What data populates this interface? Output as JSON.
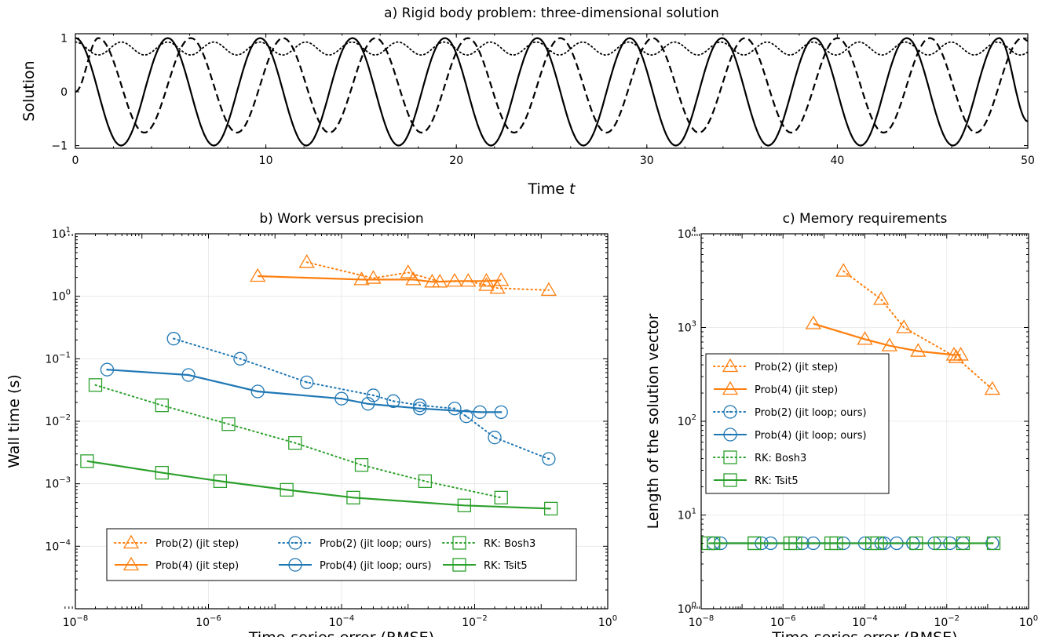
{
  "colors": {
    "orange": "#ff7f0e",
    "blue": "#1f77b4",
    "green": "#2ca02c"
  },
  "chart_data": [
    {
      "id": "a",
      "type": "line",
      "title": "a) Rigid body problem: three-dimensional solution",
      "xlabel": "Time t",
      "xlabel_main": "Time ",
      "xlabel_var": "t",
      "ylabel": "Solution",
      "xlim": [
        0,
        50
      ],
      "ylim": [
        -1.05,
        1.08
      ],
      "xticks": [
        "0",
        "10",
        "20",
        "30",
        "40",
        "50"
      ],
      "xtick_values": [
        0,
        10,
        20,
        30,
        40,
        50
      ],
      "yticks": [
        "−1",
        "0",
        "1"
      ],
      "ytick_values": [
        -1,
        0,
        1
      ],
      "grid": false,
      "series": [
        {
          "style": "solid",
          "description": "y1",
          "x": [
            0,
            2.4,
            4.85,
            7.27,
            9.7,
            12.12,
            14.55,
            16.97,
            19.4,
            21.82,
            24.25,
            26.67,
            29.1,
            31.52,
            33.95,
            36.37,
            38.8,
            41.22,
            43.65,
            46.07,
            48.5,
            50
          ],
          "y": [
            1,
            -1,
            1,
            -1,
            1,
            -1,
            1,
            -1,
            1,
            -1,
            1,
            -1,
            1,
            -1,
            1,
            -1,
            1,
            -1,
            1,
            -1,
            1,
            -0.55
          ]
        },
        {
          "style": "dashed",
          "description": "y2",
          "x": [
            0,
            1.21,
            3.62,
            6.06,
            8.48,
            10.91,
            13.33,
            15.76,
            18.18,
            20.61,
            23.03,
            25.46,
            27.88,
            30.31,
            32.73,
            35.16,
            37.58,
            40.01,
            42.43,
            44.86,
            47.28,
            49.71,
            50
          ],
          "y": [
            0,
            1,
            -0.76,
            1,
            -0.76,
            1,
            -0.76,
            1,
            -0.76,
            1,
            -0.76,
            1,
            -0.76,
            1,
            -0.76,
            1,
            -0.76,
            1,
            -0.76,
            1,
            -0.76,
            1,
            0.95
          ]
        },
        {
          "style": "dotted",
          "description": "y3",
          "x": [
            0,
            50
          ],
          "mean": 0.805,
          "amplitude": 0.12,
          "period": 2.42
        }
      ]
    },
    {
      "id": "b",
      "type": "line",
      "title": "b) Work versus precision",
      "xlabel": "Time-series error (RMSE)",
      "ylabel": "Wall time (s)",
      "xscale": "log",
      "yscale": "log",
      "xlim": [
        1e-08,
        1
      ],
      "ylim": [
        1e-05,
        10
      ],
      "xtick_exponents": [
        -8,
        -6,
        -4,
        -2,
        0
      ],
      "ytick_exponents": [
        -4,
        -3,
        -2,
        -1,
        0,
        1
      ],
      "tick_base": "10",
      "grid": true,
      "legend": "bottom",
      "series": [
        {
          "name": "Prob(2) (jit step)",
          "color": "orange",
          "line": "dotted",
          "marker": "triangle",
          "x": [
            3e-05,
            0.0003,
            0.001,
            0.003,
            0.008,
            0.015,
            0.022,
            0.13
          ],
          "y": [
            3.5,
            1.95,
            2.4,
            1.7,
            1.75,
            1.5,
            1.35,
            1.25
          ]
        },
        {
          "name": "Prob(4) (jit step)",
          "color": "orange",
          "line": "solid",
          "marker": "triangle",
          "x": [
            5.5e-06,
            0.0002,
            0.0012,
            0.0023,
            0.005,
            0.015,
            0.025
          ],
          "y": [
            2.1,
            1.85,
            1.85,
            1.7,
            1.75,
            1.75,
            1.8
          ]
        },
        {
          "name": "Prob(2) (jit loop; ours)",
          "color": "blue",
          "line": "dotted",
          "marker": "circle",
          "x": [
            3e-07,
            3e-06,
            3e-05,
            0.0003,
            0.0006,
            0.0015,
            0.005,
            0.0075,
            0.02,
            0.13
          ],
          "y": [
            0.21,
            0.1,
            0.042,
            0.026,
            0.021,
            0.018,
            0.016,
            0.012,
            0.0055,
            0.0025
          ]
        },
        {
          "name": "Prob(4) (jit loop; ours)",
          "color": "blue",
          "line": "solid",
          "marker": "circle",
          "x": [
            3e-08,
            5e-07,
            5.5e-06,
            0.0001,
            0.00025,
            0.0015,
            0.012,
            0.025
          ],
          "y": [
            0.067,
            0.055,
            0.03,
            0.023,
            0.019,
            0.016,
            0.014,
            0.014
          ]
        },
        {
          "name": "RK: Bosh3",
          "color": "green",
          "line": "dotted",
          "marker": "square",
          "x": [
            2e-08,
            2e-07,
            2e-06,
            2e-05,
            0.0002,
            0.0018,
            0.025
          ],
          "y": [
            0.038,
            0.018,
            0.009,
            0.0045,
            0.002,
            0.0011,
            0.0006
          ]
        },
        {
          "name": "RK: Tsit5",
          "color": "green",
          "line": "solid",
          "marker": "square",
          "x": [
            1.5e-08,
            2e-07,
            1.5e-06,
            1.5e-05,
            0.00015,
            0.007,
            0.14
          ],
          "y": [
            0.0023,
            0.0015,
            0.0011,
            0.0008,
            0.0006,
            0.00045,
            0.0004
          ]
        }
      ]
    },
    {
      "id": "c",
      "type": "line",
      "title": "c) Memory requirements",
      "xlabel": "Time-series error (RMSE)",
      "ylabel": "Length of the solution vector",
      "xscale": "log",
      "yscale": "log",
      "xlim": [
        1e-08,
        1
      ],
      "ylim": [
        1,
        10000
      ],
      "xtick_exponents": [
        -8,
        -6,
        -4,
        -2,
        0
      ],
      "ytick_exponents": [
        0,
        1,
        2,
        3,
        4
      ],
      "tick_base": "10",
      "grid": true,
      "legend": "center-left",
      "series": [
        {
          "name": "Prob(2) (jit step)",
          "color": "orange",
          "line": "dotted",
          "marker": "triangle",
          "x": [
            3e-05,
            0.00025,
            0.0009,
            0.017,
            0.13
          ],
          "y": [
            4000,
            2000,
            1000,
            480,
            220
          ]
        },
        {
          "name": "Prob(4) (jit step)",
          "color": "orange",
          "line": "solid",
          "marker": "triangle",
          "x": [
            5.5e-06,
            0.0001,
            0.0004,
            0.002,
            0.015,
            0.022
          ],
          "y": [
            1100,
            750,
            640,
            560,
            510,
            510
          ]
        },
        {
          "name": "Prob(2) (jit loop; ours)",
          "color": "blue",
          "line": "dotted",
          "marker": "circle",
          "x": [
            2e-08,
            3e-07,
            3e-06,
            3e-05,
            0.0003,
            0.0006,
            0.0015,
            0.005,
            0.13
          ],
          "y": [
            5,
            5,
            5,
            5,
            5,
            5,
            5,
            5,
            5
          ]
        },
        {
          "name": "Prob(4) (jit loop; ours)",
          "color": "blue",
          "line": "solid",
          "marker": "circle",
          "x": [
            3e-08,
            5e-07,
            5.5e-06,
            0.0001,
            0.00025,
            0.0015,
            0.012,
            0.025
          ],
          "y": [
            5,
            5,
            5,
            5,
            5,
            5,
            5,
            5
          ]
        },
        {
          "name": "RK: Bosh3",
          "color": "green",
          "line": "dotted",
          "marker": "square",
          "x": [
            2e-08,
            2e-07,
            2e-06,
            2e-05,
            0.0002,
            0.0018,
            0.025
          ],
          "y": [
            5,
            5,
            5,
            5,
            5,
            5,
            5
          ]
        },
        {
          "name": "RK: Tsit5",
          "color": "green",
          "line": "solid",
          "marker": "square",
          "x": [
            1.5e-08,
            2e-07,
            1.5e-06,
            1.5e-05,
            0.00015,
            0.007,
            0.14
          ],
          "y": [
            5,
            5,
            5,
            5,
            5,
            5,
            5
          ]
        }
      ]
    }
  ]
}
